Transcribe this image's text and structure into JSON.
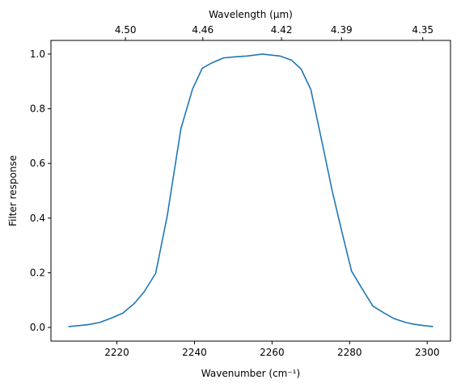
{
  "chart_data": {
    "type": "line",
    "xlabel": "Wavenumber (cm⁻¹)",
    "ylabel": "Filter response",
    "top_xlabel": "Wavelength (μm)",
    "xlim": [
      2203,
      2306
    ],
    "ylim": [
      -0.05,
      1.05
    ],
    "x_ticks": [
      2220,
      2240,
      2260,
      2280,
      2300
    ],
    "x_tick_labels": [
      "2220",
      "2240",
      "2260",
      "2280",
      "2300"
    ],
    "y_ticks": [
      0.0,
      0.2,
      0.4,
      0.6,
      0.8,
      1.0
    ],
    "y_tick_labels": [
      "0.0",
      "0.2",
      "0.4",
      "0.6",
      "0.8",
      "1.0"
    ],
    "top_ticks_um": [
      4.5,
      4.46,
      4.42,
      4.39,
      4.35
    ],
    "top_tick_labels": [
      "4.50",
      "4.46",
      "4.42",
      "4.39",
      "4.35"
    ],
    "grid": false,
    "series": [
      {
        "color": "#1f77b4",
        "x": [
          2207.5,
          2212.5,
          2215.5,
          2218.5,
          2221.5,
          2224.5,
          2227.0,
          2230.0,
          2233.0,
          2236.5,
          2239.5,
          2242.0,
          2244.5,
          2247.5,
          2250.5,
          2253.5,
          2257.5,
          2262.0,
          2265.0,
          2267.5,
          2270.0,
          2273.0,
          2275.5,
          2278.0,
          2280.5,
          2283.5,
          2286.0,
          2289.0,
          2291.5,
          2294.5,
          2296.5,
          2299.0,
          2301.5
        ],
        "y": [
          0.003,
          0.01,
          0.018,
          0.034,
          0.052,
          0.088,
          0.13,
          0.198,
          0.41,
          0.727,
          0.872,
          0.948,
          0.968,
          0.986,
          0.99,
          0.993,
          1.0,
          0.993,
          0.978,
          0.945,
          0.87,
          0.67,
          0.5,
          0.35,
          0.206,
          0.135,
          0.078,
          0.052,
          0.032,
          0.018,
          0.012,
          0.007,
          0.003
        ]
      }
    ]
  }
}
